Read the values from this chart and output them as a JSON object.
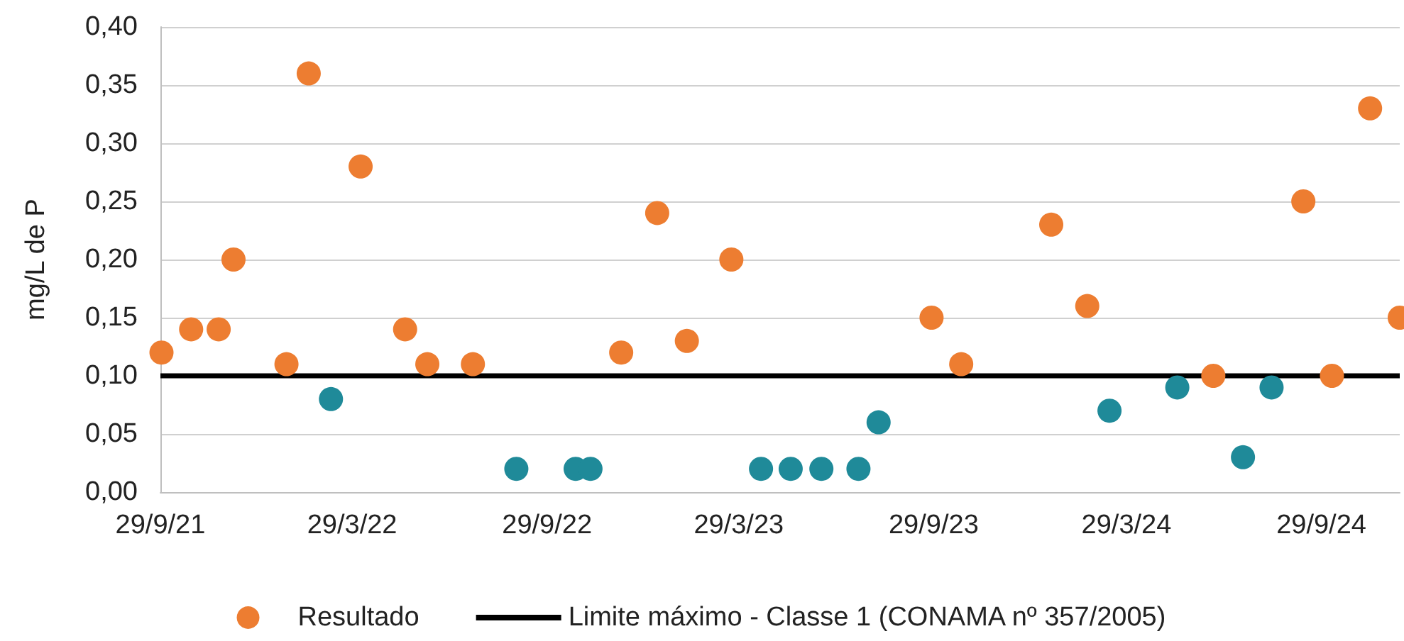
{
  "chart_data": {
    "type": "scatter",
    "ylabel": "mg/L de P",
    "xlim": [
      "2021-09-29",
      "2024-12-12"
    ],
    "xticks": [
      {
        "value": "2021-09-29",
        "label": "29/9/21"
      },
      {
        "value": "2022-03-29",
        "label": "29/3/22"
      },
      {
        "value": "2022-09-29",
        "label": "29/9/22"
      },
      {
        "value": "2023-03-29",
        "label": "29/3/23"
      },
      {
        "value": "2023-09-29",
        "label": "29/9/23"
      },
      {
        "value": "2024-03-29",
        "label": "29/3/24"
      },
      {
        "value": "2024-09-29",
        "label": "29/9/24"
      }
    ],
    "ylim": [
      0,
      0.4
    ],
    "yticks": [
      {
        "value": 0,
        "label": "0,00"
      },
      {
        "value": 0.05,
        "label": "0,05"
      },
      {
        "value": 0.1,
        "label": "0,10"
      },
      {
        "value": 0.15,
        "label": "0,15"
      },
      {
        "value": 0.2,
        "label": "0,20"
      },
      {
        "value": 0.25,
        "label": "0,25"
      },
      {
        "value": 0.3,
        "label": "0,30"
      },
      {
        "value": 0.35,
        "label": "0,35"
      },
      {
        "value": 0.4,
        "label": "0,40"
      }
    ],
    "grid": "y",
    "legend": "bottom",
    "marker": "circle",
    "series": [
      {
        "name": "Resultado",
        "color": "#ed7d31",
        "x": [
          "2021-09-30",
          "2021-10-28",
          "2021-11-23",
          "2021-12-07",
          "2022-01-26",
          "2022-02-16",
          "2022-04-06",
          "2022-05-18",
          "2022-06-08",
          "2022-07-21",
          "2022-12-08",
          "2023-01-11",
          "2023-02-08",
          "2023-03-22",
          "2023-09-27",
          "2023-10-25",
          "2024-01-18",
          "2024-02-21",
          "2024-06-19",
          "2024-09-12",
          "2024-10-09",
          "2024-11-14",
          "2024-12-12"
        ],
        "values": [
          0.12,
          0.14,
          0.14,
          0.2,
          0.11,
          0.36,
          0.28,
          0.14,
          0.11,
          0.11,
          0.12,
          0.24,
          0.13,
          0.2,
          0.15,
          0.11,
          0.23,
          0.16,
          0.1,
          0.25,
          0.1,
          0.33,
          0.15
        ]
      },
      {
        "color": "#1f8a99",
        "x": [
          "2022-03-09",
          "2022-08-31",
          "2022-10-26",
          "2022-11-09",
          "2023-04-19",
          "2023-05-17",
          "2023-06-15",
          "2023-07-20",
          "2023-08-08",
          "2024-03-13",
          "2024-05-16",
          "2024-07-17",
          "2024-08-13"
        ],
        "values": [
          0.08,
          0.02,
          0.02,
          0.02,
          0.02,
          0.02,
          0.02,
          0.02,
          0.06,
          0.07,
          0.09,
          0.03,
          0.09
        ]
      }
    ],
    "ref_lines": [
      {
        "axis": "y",
        "value": 0.1,
        "label": "Limite máximo - Classe 1 (CONAMA nº 357/2005)",
        "color": "#000000",
        "line_style": "solid"
      }
    ]
  }
}
